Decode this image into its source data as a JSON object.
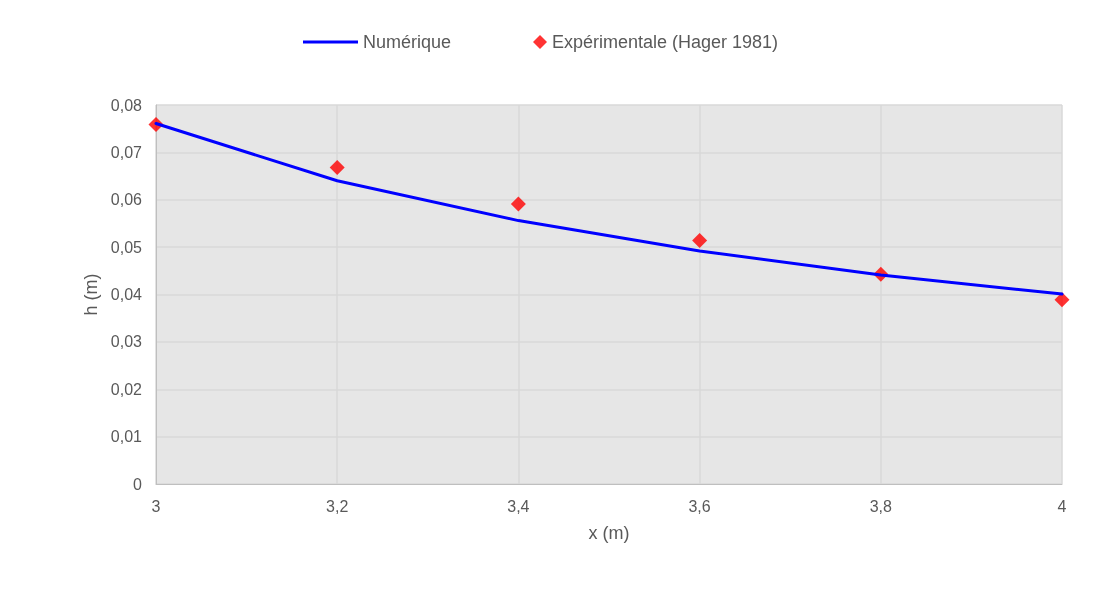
{
  "chart_data": {
    "type": "line",
    "xlabel": "x (m)",
    "ylabel": "h (m)",
    "xlim": [
      3,
      4
    ],
    "ylim": [
      0,
      0.08
    ],
    "xticks": [
      3,
      {
        "value": 3.2,
        "label": "3,2"
      },
      {
        "value": 3.4,
        "label": "3,4"
      },
      {
        "value": 3.6,
        "label": "3,6"
      },
      {
        "value": 3.8,
        "label": "3,8"
      },
      4
    ],
    "yticks": [
      0,
      {
        "value": 0.01,
        "label": "0,01"
      },
      {
        "value": 0.02,
        "label": "0,02"
      },
      {
        "value": 0.03,
        "label": "0,03"
      },
      {
        "value": 0.04,
        "label": "0,04"
      },
      {
        "value": 0.05,
        "label": "0,05"
      },
      {
        "value": 0.06,
        "label": "0,06"
      },
      {
        "value": 0.07,
        "label": "0,07"
      },
      {
        "value": 0.08,
        "label": "0,08"
      }
    ],
    "grid": true,
    "legend": "top",
    "series": [
      {
        "name": "Numérique",
        "marker": "none",
        "line_style": "solid",
        "color": "#0000ff",
        "x": [
          3,
          3.2,
          3.4,
          3.6,
          3.8,
          4
        ],
        "values": [
          0.0761,
          0.064,
          0.0556,
          0.0492,
          0.0441,
          0.0401
        ]
      },
      {
        "name": "Expérimentale (Hager 1981)",
        "type": "scatter",
        "marker": "diamond",
        "color": "#ff0000",
        "x": [
          3,
          3.2,
          3.4,
          3.6,
          3.8,
          4
        ],
        "values": [
          0.0759,
          0.0668,
          0.0591,
          0.0514,
          0.0443,
          0.0389
        ]
      }
    ]
  }
}
